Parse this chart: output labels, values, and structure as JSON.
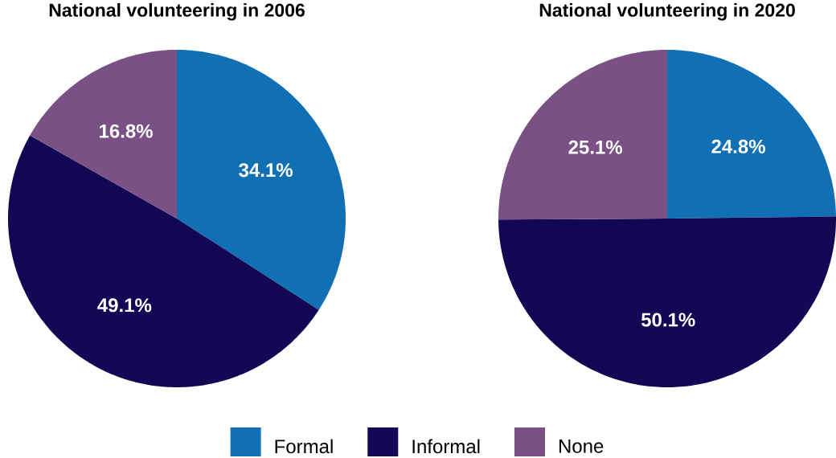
{
  "chart_data": [
    {
      "type": "pie",
      "title": "National volunteering in 2006",
      "categories": [
        "Formal",
        "Informal",
        "None"
      ],
      "values": [
        34.1,
        49.1,
        16.8
      ],
      "value_labels": [
        "34.1%",
        "49.1%",
        "16.8%"
      ],
      "colors": [
        "#1170b4",
        "#110755",
        "#7a5085"
      ],
      "legend": "bottom"
    },
    {
      "type": "pie",
      "title": "National volunteering in 2020",
      "values": [
        24.8,
        50.1,
        25.1
      ],
      "value_labels": [
        "24.8%",
        "50.1%",
        "25.1%"
      ],
      "colors": [
        "#1170b4",
        "#110755",
        "#7a5085"
      ]
    }
  ]
}
